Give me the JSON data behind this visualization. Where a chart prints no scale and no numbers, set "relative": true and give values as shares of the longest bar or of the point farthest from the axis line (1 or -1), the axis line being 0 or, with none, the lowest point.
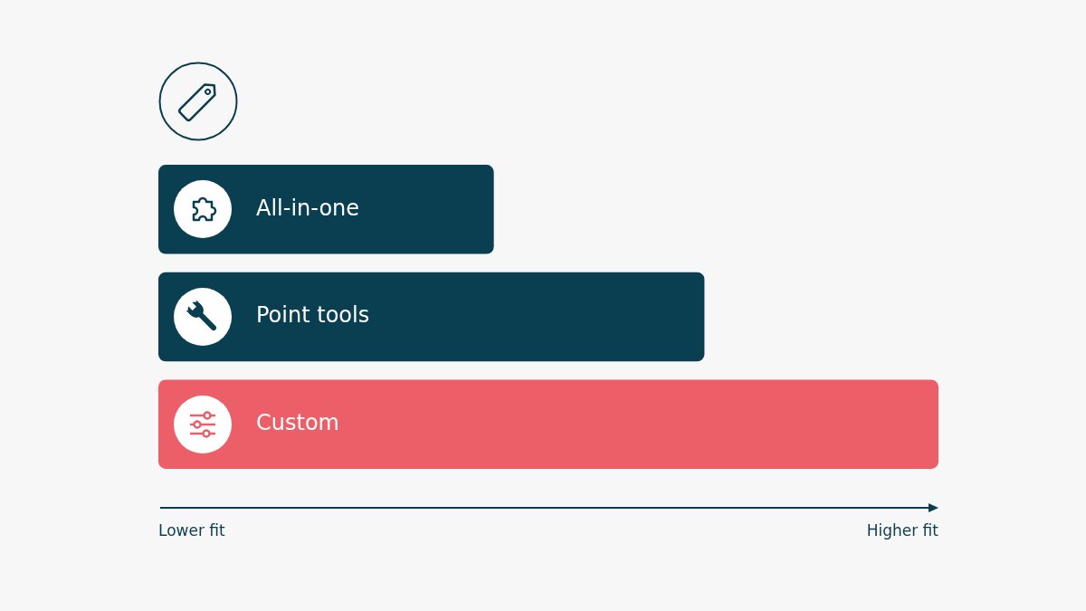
{
  "chart_data": {
    "type": "bar",
    "orientation": "horizontal",
    "relative": true,
    "categories": [
      "All-in-one",
      "Point tools",
      "Custom"
    ],
    "values": [
      0.43,
      0.7,
      1
    ],
    "colors": [
      "#0a3f52",
      "#0a3f52",
      "#ec5f68"
    ],
    "annotations": [
      "Lower fit",
      "Higher fit"
    ],
    "legend": false
  }
}
